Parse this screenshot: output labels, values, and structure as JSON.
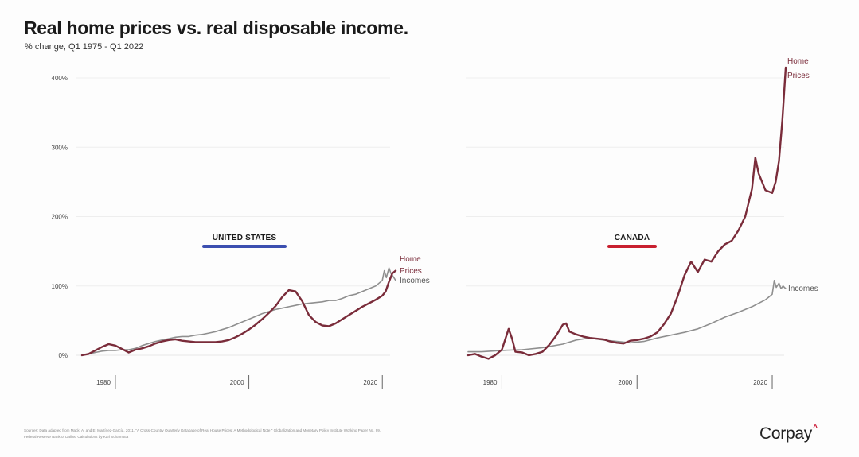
{
  "title": "Real home prices vs. real disposable income.",
  "subtitle": "% change, Q1 1975 - Q1 2022",
  "source_lines": [
    "Sources: Data adapted from Mack, A. and E. Martínez-García. 2011. \"A Cross-Country Quarterly Database of Real House Prices: A Methodological Note.\" Globalization and Monetary Policy Institute Working Paper No. 99,",
    "Federal Reserve Bank of Dallas. Calculations by Karl Schamotta"
  ],
  "brand": {
    "name": "Corpay",
    "mark": "^"
  },
  "colors": {
    "home_prices": "#7a2c3a",
    "incomes": "#8f8f8f",
    "us_underline": "#3c4fb0",
    "canada_underline": "#c8202f",
    "grid": "#eeeeee"
  },
  "chart_data": [
    {
      "type": "line",
      "panel": "UNITED STATES",
      "ylabel": "% change",
      "ylim": [
        0,
        400
      ],
      "y_ticks": [
        0,
        100,
        200,
        300,
        400
      ],
      "y_tick_labels": [
        "0%",
        "100%",
        "200%",
        "300%",
        "400%"
      ],
      "xlim": [
        1975,
        2022
      ],
      "x_ticks": [
        1980,
        2000,
        2020
      ],
      "x_tick_labels": [
        "1980",
        "2000",
        "2020"
      ],
      "series": [
        {
          "name": "Home Prices",
          "x": [
            1975,
            1976,
            1977,
            1978,
            1979,
            1980,
            1981,
            1982,
            1983,
            1984,
            1985,
            1986,
            1987,
            1988,
            1989,
            1990,
            1991,
            1992,
            1993,
            1994,
            1995,
            1996,
            1997,
            1998,
            1999,
            2000,
            2001,
            2002,
            2003,
            2004,
            2005,
            2006,
            2007,
            2008,
            2009,
            2010,
            2011,
            2012,
            2013,
            2014,
            2015,
            2016,
            2017,
            2018,
            2019,
            2020,
            2020.5,
            2021,
            2021.5,
            2022
          ],
          "values": [
            0,
            2,
            7,
            12,
            16,
            14,
            9,
            4,
            8,
            10,
            13,
            17,
            20,
            22,
            23,
            21,
            20,
            19,
            19,
            19,
            19,
            20,
            22,
            26,
            31,
            37,
            44,
            52,
            61,
            71,
            84,
            94,
            92,
            78,
            58,
            48,
            43,
            42,
            46,
            52,
            58,
            64,
            70,
            75,
            80,
            86,
            92,
            106,
            118,
            122
          ]
        },
        {
          "name": "Incomes",
          "x": [
            1975,
            1976,
            1977,
            1978,
            1979,
            1980,
            1981,
            1982,
            1983,
            1984,
            1985,
            1986,
            1987,
            1988,
            1989,
            1990,
            1991,
            1992,
            1993,
            1994,
            1995,
            1996,
            1997,
            1998,
            1999,
            2000,
            2001,
            2002,
            2003,
            2004,
            2005,
            2006,
            2007,
            2008,
            2009,
            2010,
            2011,
            2012,
            2013,
            2014,
            2015,
            2016,
            2017,
            2018,
            2019,
            2020,
            2020.3,
            2020.6,
            2021,
            2021.3,
            2021.6,
            2022
          ],
          "values": [
            0,
            2,
            4,
            6,
            7,
            7,
            8,
            8,
            10,
            14,
            17,
            20,
            22,
            24,
            26,
            27,
            27,
            29,
            30,
            32,
            34,
            37,
            40,
            44,
            48,
            52,
            56,
            60,
            63,
            66,
            68,
            70,
            72,
            74,
            75,
            76,
            77,
            79,
            79,
            82,
            86,
            88,
            92,
            96,
            100,
            108,
            122,
            112,
            126,
            118,
            114,
            108
          ]
        }
      ],
      "annotations": [
        "Home Prices",
        "Incomes"
      ]
    },
    {
      "type": "line",
      "panel": "CANADA",
      "ylabel": "% change",
      "ylim": [
        0,
        400
      ],
      "y_ticks": [
        0,
        100,
        200,
        300,
        400
      ],
      "xlim": [
        1975,
        2022
      ],
      "x_ticks": [
        1980,
        2000,
        2020
      ],
      "x_tick_labels": [
        "1980",
        "2000",
        "2020"
      ],
      "series": [
        {
          "name": "Home Prices",
          "x": [
            1975,
            1976,
            1977,
            1978,
            1979,
            1980,
            1981,
            1981.5,
            1982,
            1983,
            1984,
            1985,
            1986,
            1987,
            1988,
            1989,
            1989.5,
            1990,
            1991,
            1992,
            1993,
            1994,
            1995,
            1996,
            1997,
            1998,
            1999,
            2000,
            2001,
            2002,
            2003,
            2004,
            2005,
            2006,
            2007,
            2008,
            2009,
            2010,
            2011,
            2012,
            2013,
            2014,
            2015,
            2016,
            2017,
            2017.5,
            2018,
            2019,
            2020,
            2020.5,
            2021,
            2021.5,
            2022
          ],
          "values": [
            0,
            2,
            -2,
            -5,
            0,
            8,
            38,
            24,
            5,
            4,
            0,
            2,
            5,
            15,
            28,
            44,
            46,
            34,
            30,
            27,
            25,
            24,
            23,
            20,
            18,
            17,
            21,
            22,
            24,
            27,
            33,
            45,
            60,
            85,
            115,
            135,
            120,
            138,
            135,
            150,
            160,
            165,
            180,
            200,
            240,
            285,
            262,
            238,
            234,
            250,
            280,
            340,
            415
          ]
        },
        {
          "name": "Incomes",
          "x": [
            1975,
            1977,
            1980,
            1983,
            1986,
            1989,
            1991,
            1993,
            1995,
            1997,
            1999,
            2001,
            2003,
            2005,
            2007,
            2009,
            2011,
            2013,
            2015,
            2017,
            2019,
            2020,
            2020.3,
            2020.6,
            2021,
            2021.3,
            2021.6,
            2022
          ],
          "values": [
            5,
            5,
            7,
            8,
            11,
            16,
            22,
            25,
            22,
            20,
            18,
            20,
            25,
            29,
            33,
            38,
            46,
            55,
            62,
            70,
            80,
            88,
            108,
            98,
            104,
            96,
            100,
            96
          ]
        }
      ],
      "annotations": [
        "Home Prices",
        "Incomes"
      ]
    }
  ],
  "labels": {
    "us_home_prices_1": "Home",
    "us_home_prices_2": "Prices",
    "us_incomes": "Incomes",
    "ca_home_prices_1": "Home",
    "ca_home_prices_2": "Prices",
    "ca_incomes": "Incomes"
  }
}
